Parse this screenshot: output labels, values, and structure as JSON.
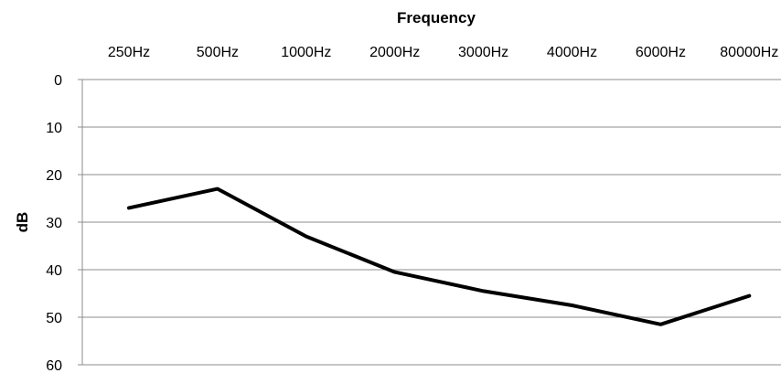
{
  "chart_data": {
    "type": "line",
    "title": "Frequency",
    "xlabel": "Frequency",
    "ylabel": "dB",
    "categories": [
      "250Hz",
      "500Hz",
      "1000Hz",
      "2000Hz",
      "3000Hz",
      "4000Hz",
      "6000Hz",
      "80000Hz"
    ],
    "y_ticks": [
      "0",
      "10",
      "20",
      "30",
      "40",
      "50",
      "60"
    ],
    "ylim": [
      0,
      60
    ],
    "y_inverted": true,
    "x_axis_position": "top",
    "grid": true,
    "series": [
      {
        "values": [
          27,
          23,
          33,
          40.5,
          44.5,
          47.5,
          51.5,
          45.5
        ]
      }
    ],
    "colors": {
      "line": "#000000",
      "grid": "#8c8c8c",
      "axis": "#8c8c8c"
    }
  }
}
